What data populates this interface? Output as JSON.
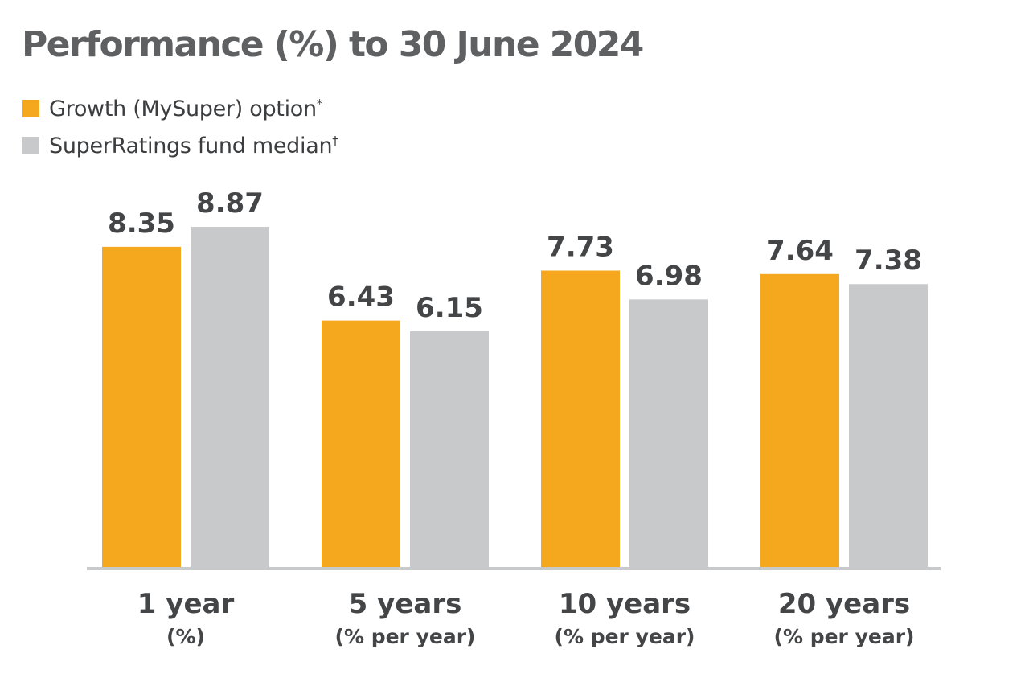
{
  "title": "Performance (%) to 30 June 2024",
  "legend": [
    {
      "label": "Growth (MySuper) option",
      "mark": "*",
      "color": "#f5a81e"
    },
    {
      "label": "SuperRatings fund median",
      "mark": "†",
      "color": "#c8c9cb"
    }
  ],
  "chart_data": {
    "type": "bar",
    "title": "Performance (%) to 30 June 2024",
    "categories": [
      "1 year",
      "5 years",
      "10 years",
      "20 years"
    ],
    "category_sublabels": [
      "(%)",
      "(% per year)",
      "(% per year)",
      "(% per year)"
    ],
    "series": [
      {
        "name": "Growth (MySuper) option",
        "color": "#f5a81e",
        "values": [
          8.35,
          6.43,
          7.73,
          7.64
        ]
      },
      {
        "name": "SuperRatings fund median",
        "color": "#c8c9cb",
        "values": [
          8.87,
          6.15,
          6.98,
          7.38
        ]
      }
    ],
    "value_labels": [
      [
        "8.35",
        "6.43",
        "7.73",
        "7.64"
      ],
      [
        "8.87",
        "6.15",
        "6.98",
        "7.38"
      ]
    ],
    "ylim": [
      0,
      10
    ],
    "grid": false,
    "legend_position": "top-left",
    "axis_color": "#c8c9cb"
  }
}
